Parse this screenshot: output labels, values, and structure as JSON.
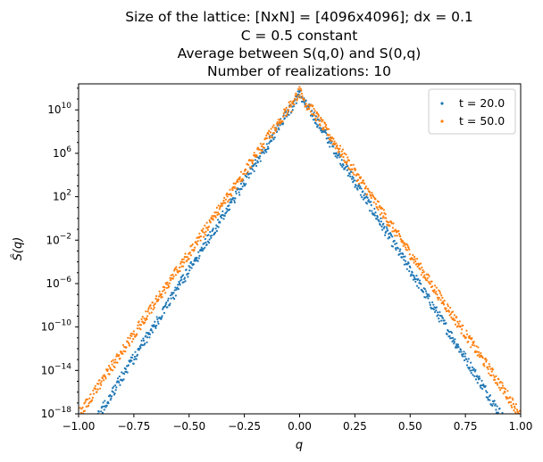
{
  "chart_data": {
    "type": "scatter",
    "title_lines": [
      "Size of the lattice: [NxN] = [4096x4096]; dx = 0.1",
      "C = 0.5 constant",
      "Average between S(q,0) and S(0,q)",
      "Number of realizations: 10"
    ],
    "xlabel": "q",
    "ylabel": "Ŝ(q)",
    "xlim": [
      -1.0,
      1.0
    ],
    "ylim_log10": [
      -18,
      12.4
    ],
    "yscale": "log",
    "x_ticks": [
      {
        "value": -1.0,
        "label": "−1.00"
      },
      {
        "value": -0.75,
        "label": "−0.75"
      },
      {
        "value": -0.5,
        "label": "−0.50"
      },
      {
        "value": -0.25,
        "label": "−0.25"
      },
      {
        "value": 0.0,
        "label": "0.00"
      },
      {
        "value": 0.25,
        "label": "0.25"
      },
      {
        "value": 0.5,
        "label": "0.50"
      },
      {
        "value": 0.75,
        "label": "0.75"
      },
      {
        "value": 1.0,
        "label": "1.00"
      }
    ],
    "y_ticks": [
      {
        "exp": 10,
        "base": "10",
        "sup": "10"
      },
      {
        "exp": 6,
        "base": "10",
        "sup": "6"
      },
      {
        "exp": 2,
        "base": "10",
        "sup": "2"
      },
      {
        "exp": -2,
        "base": "10",
        "sup": "−2"
      },
      {
        "exp": -6,
        "base": "10",
        "sup": "−6"
      },
      {
        "exp": -10,
        "base": "10",
        "sup": "−10"
      },
      {
        "exp": -14,
        "base": "10",
        "sup": "−14"
      },
      {
        "exp": -18,
        "base": "10",
        "sup": "−18"
      }
    ],
    "legend_position": "top-right",
    "grid": false,
    "series": [
      {
        "name": "t = 20.0",
        "color": "#1f77b4",
        "peak_log10": 11.5,
        "slope_log10_per_unit_q": -32.5,
        "scatter_spread_log10": 0.5,
        "x_range": [
          -1.0,
          1.0
        ],
        "points_per_side": 420
      },
      {
        "name": "t = 50.0",
        "color": "#ff7f0e",
        "peak_log10": 11.7,
        "slope_log10_per_unit_q": -29.8,
        "scatter_spread_log10": 0.5,
        "x_range": [
          -1.0,
          1.0
        ],
        "points_per_side": 420
      }
    ]
  }
}
